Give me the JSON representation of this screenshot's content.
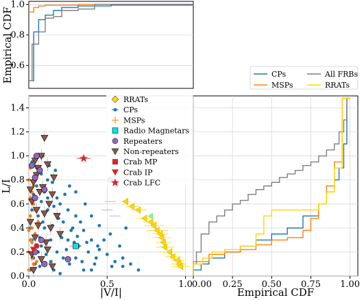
{
  "colors": {
    "cps": "#1f77b4",
    "msps": "#ff7f0e",
    "frbs": "#7f7f7f",
    "rrats": "#ffd700",
    "magnetars": "#00e5e5",
    "repeaters": "#9467bd",
    "nonrepeaters": "#8c564b",
    "crab": "#d62728"
  },
  "chart_data": [
    {
      "id": "top",
      "type": "line",
      "xlabel": "",
      "ylabel": "Empirical CDF",
      "xlim": [
        0,
        1.0
      ],
      "ylim": [
        0.45,
        1.02
      ],
      "yticks": [
        "0.6",
        "0.8",
        "1.0"
      ],
      "series": [
        {
          "name": "CPs",
          "color_key": "cps",
          "x": [
            0,
            0.03,
            0.06,
            0.1,
            0.15,
            0.2,
            0.3,
            0.5,
            1.0
          ],
          "y": [
            0.5,
            0.82,
            0.9,
            0.93,
            0.96,
            0.98,
            0.99,
            0.995,
            1.0
          ]
        },
        {
          "name": "MSPs",
          "color_key": "msps",
          "x": [
            0,
            0.03,
            0.06,
            0.1,
            0.3,
            1.0
          ],
          "y": [
            0.95,
            0.98,
            0.99,
            0.995,
            1.0,
            1.0
          ]
        },
        {
          "name": "All FRBs",
          "color_key": "frbs",
          "x": [
            0,
            0.02,
            0.06,
            0.1,
            0.15,
            0.2,
            0.3,
            0.4,
            1.0
          ],
          "y": [
            0.5,
            0.74,
            0.82,
            0.91,
            0.92,
            0.96,
            0.97,
            1.0,
            1.0
          ]
        }
      ]
    },
    {
      "id": "main",
      "type": "scatter",
      "xlabel": "|V/I|",
      "ylabel": "L/I",
      "xlim": [
        0,
        1.05
      ],
      "ylim": [
        0,
        1.5
      ],
      "xticks": [
        "0.0",
        "0.5",
        "1.0"
      ],
      "yticks": [
        "0.0",
        "0.2",
        "0.4",
        "0.6",
        "0.8",
        "1.0",
        "1.2",
        "1.4"
      ],
      "legend": [
        "RRATs",
        "CPs",
        "MSPs",
        "Radio Magnetars",
        "Repeaters",
        "Non-repeaters",
        "Crab MP",
        "Crab IP",
        "Crab LFC"
      ],
      "legend_position": "upper-right",
      "cps_points": [
        [
          0.02,
          0.95
        ],
        [
          0.05,
          0.9
        ],
        [
          0.08,
          0.85
        ],
        [
          0.12,
          0.8
        ],
        [
          0.15,
          0.78
        ],
        [
          0.1,
          0.7
        ],
        [
          0.18,
          0.65
        ],
        [
          0.2,
          0.6
        ],
        [
          0.25,
          0.55
        ],
        [
          0.3,
          0.5
        ],
        [
          0.22,
          0.45
        ],
        [
          0.28,
          0.4
        ],
        [
          0.35,
          0.38
        ],
        [
          0.4,
          0.3
        ],
        [
          0.32,
          0.25
        ],
        [
          0.38,
          0.2
        ],
        [
          0.45,
          0.22
        ],
        [
          0.5,
          0.18
        ],
        [
          0.55,
          0.12
        ],
        [
          0.6,
          0.08
        ],
        [
          0.65,
          0.1
        ],
        [
          0.42,
          0.1
        ],
        [
          0.3,
          0.15
        ],
        [
          0.25,
          0.3
        ],
        [
          0.2,
          0.35
        ],
        [
          0.15,
          0.42
        ],
        [
          0.12,
          0.55
        ],
        [
          0.08,
          0.62
        ],
        [
          0.05,
          0.75
        ],
        [
          0.03,
          0.68
        ],
        [
          0.06,
          0.5
        ],
        [
          0.1,
          0.4
        ],
        [
          0.14,
          0.3
        ],
        [
          0.18,
          0.2
        ],
        [
          0.22,
          0.15
        ],
        [
          0.26,
          0.1
        ],
        [
          0.08,
          0.25
        ],
        [
          0.04,
          0.35
        ],
        [
          0.03,
          0.15
        ],
        [
          0.07,
          0.08
        ],
        [
          0.11,
          0.18
        ],
        [
          0.16,
          0.05
        ],
        [
          0.2,
          0.02
        ],
        [
          0.35,
          0.05
        ],
        [
          0.48,
          0.3
        ],
        [
          0.52,
          0.35
        ],
        [
          0.58,
          0.25
        ],
        [
          0.62,
          0.4
        ],
        [
          0.45,
          0.42
        ],
        [
          0.4,
          0.5
        ],
        [
          0.36,
          0.6
        ],
        [
          0.3,
          0.7
        ],
        [
          0.26,
          0.75
        ],
        [
          0.4,
          0.05
        ],
        [
          0.7,
          0.05
        ],
        [
          0.6,
          0.15
        ],
        [
          0.17,
          0.88
        ],
        [
          0.13,
          0.92
        ],
        [
          0.09,
          1.0
        ],
        [
          0.05,
          0.98
        ],
        [
          0.23,
          0.68
        ],
        [
          0.33,
          0.45
        ],
        [
          0.43,
          0.15
        ],
        [
          0.53,
          0.08
        ],
        [
          0.29,
          0.28
        ],
        [
          0.19,
          0.48
        ],
        [
          0.09,
          0.45
        ],
        [
          0.02,
          0.55
        ],
        [
          0.02,
          0.3
        ],
        [
          0.04,
          0.1
        ],
        [
          0.01,
          0.05
        ],
        [
          0.12,
          0.65
        ],
        [
          0.16,
          0.58
        ],
        [
          0.24,
          0.22
        ],
        [
          0.34,
          0.12
        ],
        [
          0.44,
          0.25
        ],
        [
          0.14,
          0.12
        ],
        [
          0.06,
          0.2
        ],
        [
          0.01,
          0.4
        ],
        [
          0.07,
          0.32
        ],
        [
          0.11,
          0.28
        ],
        [
          0.21,
          0.32
        ],
        [
          0.27,
          0.38
        ],
        [
          0.31,
          0.33
        ],
        [
          0.37,
          0.28
        ]
      ],
      "msps_points": [
        [
          0.0,
          0.2
        ],
        [
          0.01,
          0.3
        ],
        [
          0.02,
          0.4
        ],
        [
          0.01,
          0.5
        ],
        [
          0.03,
          0.6
        ],
        [
          0.02,
          0.7
        ],
        [
          0.0,
          0.8
        ],
        [
          0.01,
          0.9
        ],
        [
          0.04,
          0.35
        ],
        [
          0.05,
          0.25
        ],
        [
          0.02,
          0.15
        ],
        [
          0.03,
          0.1
        ],
        [
          0.0,
          0.05
        ],
        [
          0.06,
          0.45
        ],
        [
          0.04,
          0.55
        ],
        [
          0.01,
          0.65
        ],
        [
          0.0,
          0.38
        ],
        [
          0.02,
          0.28
        ],
        [
          0.05,
          0.12
        ],
        [
          0.03,
          0.75
        ]
      ],
      "rrats_points": [
        [
          0.62,
          0.62
        ],
        [
          0.66,
          0.58
        ],
        [
          0.7,
          0.55
        ],
        [
          0.74,
          0.48
        ],
        [
          0.78,
          0.45
        ],
        [
          0.8,
          0.42
        ],
        [
          0.82,
          0.38
        ],
        [
          0.84,
          0.35
        ],
        [
          0.85,
          0.32
        ],
        [
          0.86,
          0.28
        ],
        [
          0.87,
          0.24
        ],
        [
          0.9,
          0.2
        ],
        [
          0.92,
          0.16
        ],
        [
          0.95,
          0.13
        ],
        [
          0.96,
          0.1
        ],
        [
          0.97,
          0.08
        ]
      ],
      "rrats_xerr": [
        0.03,
        0.04,
        0.05,
        0.06,
        0.05,
        0.06,
        0.07,
        0.05,
        0.06,
        0.05,
        0.06,
        0.07,
        0.05,
        0.04,
        0.05,
        0.06
      ],
      "magnetars_points": [
        [
          0.3,
          0.25
        ]
      ],
      "repeaters_points": [
        [
          0.05,
          1.0
        ],
        [
          0.02,
          0.92
        ],
        [
          0.07,
          0.88
        ],
        [
          0.04,
          0.82
        ],
        [
          0.52,
          0.8
        ],
        [
          0.08,
          0.3
        ],
        [
          0.04,
          0.2
        ],
        [
          0.1,
          0.1
        ],
        [
          0.25,
          0.14
        ],
        [
          0.04,
          0.65
        ],
        [
          0.1,
          0.72
        ]
      ],
      "nonrepeaters_points": [
        [
          0.1,
          1.15
        ],
        [
          0.08,
          1.0
        ],
        [
          0.04,
          0.96
        ],
        [
          0.12,
          0.93
        ],
        [
          0.05,
          0.84
        ],
        [
          0.03,
          0.78
        ],
        [
          0.09,
          0.74
        ],
        [
          0.07,
          0.7
        ],
        [
          0.02,
          0.62
        ],
        [
          0.13,
          0.6
        ],
        [
          0.15,
          0.68
        ],
        [
          0.05,
          0.55
        ],
        [
          0.1,
          0.52
        ],
        [
          0.18,
          0.5
        ],
        [
          0.01,
          0.45
        ],
        [
          0.06,
          0.42
        ],
        [
          0.14,
          0.4
        ],
        [
          0.04,
          0.32
        ],
        [
          0.11,
          0.28
        ],
        [
          0.2,
          0.35
        ],
        [
          0.02,
          0.18
        ],
        [
          0.08,
          0.14
        ],
        [
          0.15,
          0.08
        ],
        [
          0.03,
          0.05
        ],
        [
          0.06,
          0.9
        ],
        [
          0.16,
          0.82
        ],
        [
          0.01,
          0.72
        ],
        [
          0.12,
          0.22
        ]
      ],
      "crab_mp": [
        [
          0.05,
          0.25
        ]
      ],
      "crab_ip": [
        [
          0.03,
          0.22
        ]
      ],
      "crab_lfc": [
        [
          0.35,
          0.98
        ]
      ],
      "lime_point": [
        [
          0.78,
          0.5
        ]
      ],
      "purple_bar_points": [
        [
          0.5,
          0.55
        ],
        [
          0.52,
          0.62
        ],
        [
          0.55,
          0.5
        ]
      ]
    },
    {
      "id": "right",
      "type": "line",
      "xlabel": "Empirical CDF",
      "ylabel": "",
      "xlim": [
        0,
        1.05
      ],
      "ylim": [
        0,
        1.5
      ],
      "xticks": [
        "0.00",
        "0.25",
        "0.50",
        "0.75",
        "1.00"
      ],
      "legend": [
        "CPs",
        "MSPs",
        "All FRBs",
        "RRATs"
      ],
      "legend_position": "upper-right",
      "series": [
        {
          "name": "CPs",
          "color_key": "cps",
          "x": [
            0.0,
            0.05,
            0.1,
            0.2,
            0.3,
            0.4,
            0.5,
            0.6,
            0.7,
            0.8,
            0.85,
            0.9,
            0.93,
            0.96,
            0.98,
            1.0
          ],
          "y": [
            0.0,
            0.05,
            0.1,
            0.15,
            0.2,
            0.25,
            0.3,
            0.35,
            0.4,
            0.5,
            0.6,
            0.7,
            0.8,
            0.9,
            1.1,
            1.48
          ]
        },
        {
          "name": "MSPs",
          "color_key": "msps",
          "x": [
            0.0,
            0.1,
            0.2,
            0.3,
            0.4,
            0.5,
            0.6,
            0.7,
            0.75,
            0.8,
            0.85,
            0.9,
            0.95,
            1.0
          ],
          "y": [
            0.0,
            0.12,
            0.18,
            0.2,
            0.22,
            0.26,
            0.3,
            0.32,
            0.38,
            0.48,
            0.6,
            0.75,
            0.95,
            1.48
          ]
        },
        {
          "name": "All FRBs",
          "color_key": "frbs",
          "x": [
            0.0,
            0.02,
            0.05,
            0.1,
            0.15,
            0.2,
            0.25,
            0.3,
            0.35,
            0.4,
            0.45,
            0.5,
            0.55,
            0.6,
            0.65,
            0.7,
            0.75,
            0.8,
            0.85,
            0.9,
            0.93,
            0.96,
            0.98,
            1.0
          ],
          "y": [
            0.0,
            0.1,
            0.2,
            0.35,
            0.45,
            0.5,
            0.55,
            0.6,
            0.63,
            0.68,
            0.72,
            0.75,
            0.78,
            0.82,
            0.85,
            0.88,
            0.92,
            0.95,
            1.0,
            1.05,
            1.1,
            1.2,
            1.3,
            1.48
          ]
        },
        {
          "name": "RRATs",
          "color_key": "rrats",
          "x": [
            0.0,
            0.06,
            0.12,
            0.2,
            0.3,
            0.4,
            0.45,
            0.5,
            0.55,
            0.6,
            0.65,
            0.7,
            0.75,
            0.8,
            0.85,
            0.9,
            0.95,
            1.0
          ],
          "y": [
            0.0,
            0.1,
            0.15,
            0.2,
            0.22,
            0.25,
            0.35,
            0.5,
            0.55,
            0.55,
            0.55,
            0.55,
            0.55,
            0.55,
            0.6,
            0.7,
            0.9,
            1.48
          ]
        }
      ]
    }
  ]
}
